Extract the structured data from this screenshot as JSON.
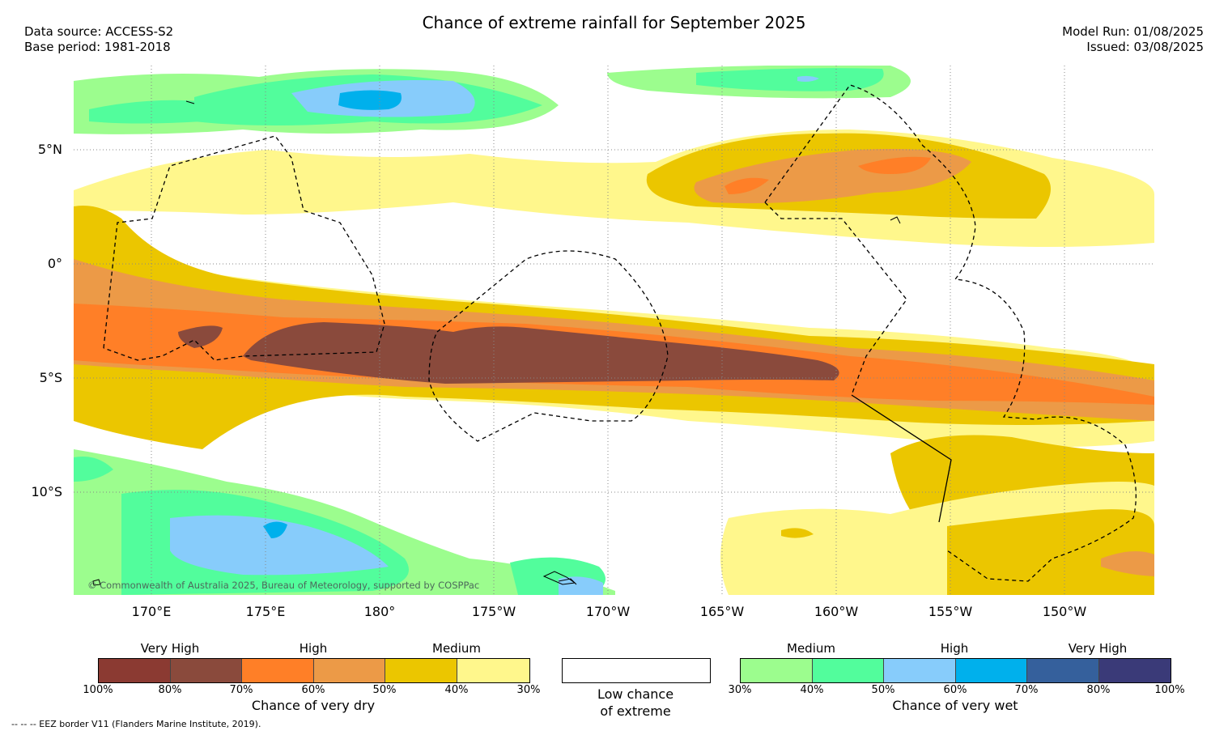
{
  "title": "Chance of extreme rainfall for September 2025",
  "data_source": "Data source: ACCESS-S2",
  "base_period": "Base period: 1981-2018",
  "model_run": "Model Run: 01/08/2025",
  "issued": "Issued: 03/08/2025",
  "lat_labels": [
    "5°N",
    "0°",
    "5°S",
    "10°S"
  ],
  "lon_labels": [
    "170°E",
    "175°E",
    "180°",
    "175°W",
    "170°W",
    "165°W",
    "160°W",
    "155°W",
    "150°W"
  ],
  "copyright": "© Commonwealth of Australia 2025, Bureau of Meteorology, supported by COSPPac",
  "dry_legend": {
    "levels": [
      "Very High",
      "High",
      "Medium"
    ],
    "percents": [
      "100%",
      "80%",
      "70%",
      "60%",
      "50%",
      "40%",
      "30%"
    ],
    "caption": "Chance of very dry",
    "colors": [
      "#8b3a32",
      "#8a4a3c",
      "#ff7f27",
      "#ec9a47",
      "#ebc600",
      "#fff78c"
    ]
  },
  "low_legend": {
    "caption_line1": "Low chance",
    "caption_line2": "of extreme"
  },
  "wet_legend": {
    "levels": [
      "Medium",
      "High",
      "Very High"
    ],
    "percents": [
      "30%",
      "40%",
      "50%",
      "60%",
      "70%",
      "80%",
      "100%"
    ],
    "caption": "Chance of very wet",
    "colors": [
      "#9cfd8e",
      "#52fd9c",
      "#87ccfb",
      "#00b0ec",
      "#35609c",
      "#3a3a78"
    ]
  },
  "eez_note": "--  --  -- EEZ border V11 (Flanders Marine Institute, 2019)."
}
